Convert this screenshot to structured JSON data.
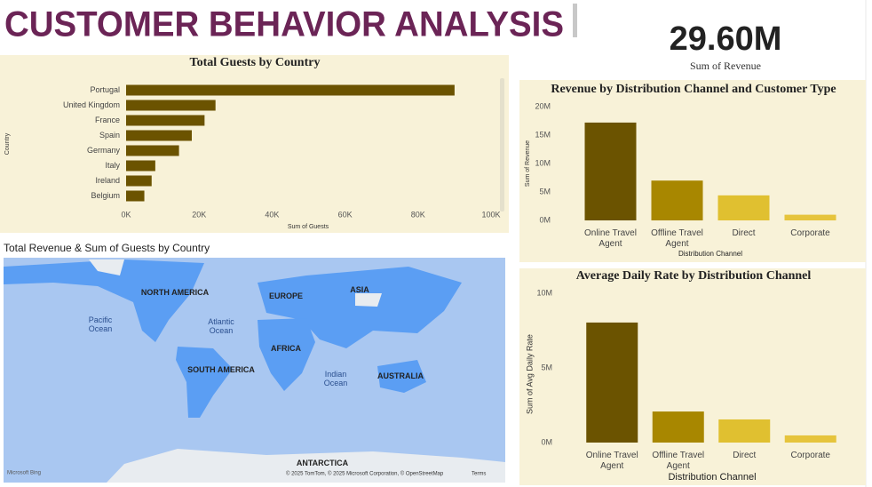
{
  "header": {
    "title": "CUSTOMER BEHAVIOR ANALYSIS"
  },
  "kpi": {
    "value": "29.60M",
    "label": "Sum of Revenue"
  },
  "chart_data": [
    {
      "type": "bar",
      "orientation": "horizontal",
      "title": "Total Guests by Country",
      "x_label": "Sum of Guests",
      "y_label": "Country",
      "categories": [
        "Portugal",
        "United Kingdom",
        "France",
        "Spain",
        "Germany",
        "Italy",
        "Ireland",
        "Belgium"
      ],
      "values": [
        90000,
        24500,
        21500,
        18000,
        14500,
        8000,
        7000,
        5000
      ],
      "color": "#6b5300",
      "xlim": [
        0,
        100000
      ],
      "xticks": [
        {
          "value": 0,
          "label": "0K"
        },
        {
          "value": 20000,
          "label": "20K"
        },
        {
          "value": 40000,
          "label": "40K"
        },
        {
          "value": 60000,
          "label": "60K"
        },
        {
          "value": 80000,
          "label": "80K"
        },
        {
          "value": 100000,
          "label": "100K"
        }
      ]
    },
    {
      "type": "bar",
      "orientation": "vertical",
      "title": "Revenue by Distribution Channel and Customer Type",
      "x_label": "Distribution Channel",
      "y_label": "Sum of Revenue",
      "categories": [
        "Online Travel Agent",
        "Offline Travel Agent",
        "Direct",
        "Corporate"
      ],
      "values": [
        17200000,
        7000000,
        4400000,
        1000000
      ],
      "colors": [
        "#6b5300",
        "#a88700",
        "#e0c030",
        "#e6c43c"
      ],
      "ylim": [
        0,
        20000000
      ],
      "yticks": [
        {
          "value": 0,
          "label": "0M"
        },
        {
          "value": 5000000,
          "label": "5M"
        },
        {
          "value": 10000000,
          "label": "10M"
        },
        {
          "value": 15000000,
          "label": "15M"
        },
        {
          "value": 20000000,
          "label": "20M"
        }
      ]
    },
    {
      "type": "bar",
      "orientation": "vertical",
      "title": "Average Daily Rate by Distribution Channel",
      "x_label": "Distribution Channel",
      "y_label": "Sum of Avg Daily Rate",
      "categories": [
        "Online Travel Agent",
        "Offline Travel Agent",
        "Direct",
        "Corporate"
      ],
      "values": [
        8040000,
        2080000,
        1550000,
        480000
      ],
      "colors": [
        "#6b5300",
        "#a88700",
        "#e0c030",
        "#e6c43c"
      ],
      "ylim": [
        0,
        10000000
      ],
      "yticks": [
        {
          "value": 0,
          "label": "0M"
        },
        {
          "value": 5000000,
          "label": "5M"
        },
        {
          "value": 10000000,
          "label": "10M"
        }
      ]
    }
  ],
  "map": {
    "title": "Total Revenue & Sum of Guests by Country",
    "labels": [
      "NORTH AMERICA",
      "EUROPE",
      "ASIA",
      "Pacific Ocean",
      "Atlantic Ocean",
      "AFRICA",
      "SOUTH AMERICA",
      "Indian Ocean",
      "AUSTRALIA",
      "ANTARCTICA"
    ],
    "provider": "Microsoft Bing",
    "copyright": "© 2025 TomTom, © 2025 Microsoft Corporation, © OpenStreetMap",
    "terms": "Terms"
  }
}
